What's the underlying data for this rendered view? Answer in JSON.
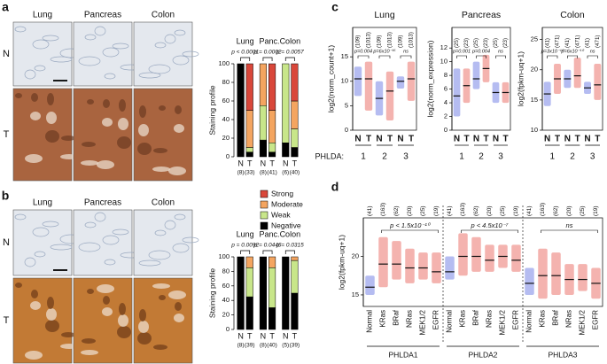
{
  "panel_labels": [
    "a",
    "b",
    "c",
    "d"
  ],
  "histology": [
    {
      "columns": [
        "Lung",
        "Pancreas",
        "Colon"
      ],
      "rows": [
        "N",
        "T"
      ]
    },
    {
      "columns": [
        "Lung",
        "Pancreas",
        "Colon"
      ],
      "rows": [
        "N",
        "T"
      ]
    }
  ],
  "chart_data": [
    {
      "type": "stacked_bar",
      "y_label": "Staining profile",
      "groups": [
        "Lung",
        "Panc.",
        "Colon"
      ],
      "p_values": [
        "p < 0.0001",
        "p = 0.0002",
        "p = 0.0057"
      ],
      "categories": [
        "N",
        "T",
        "N",
        "T",
        "N",
        "T"
      ],
      "counts": [
        "(8)",
        "(33)",
        "(8)",
        "(41)",
        "(6)",
        "(40)"
      ],
      "ylim": [
        0,
        100
      ],
      "yticks": [
        0,
        20,
        40,
        60,
        80,
        100
      ],
      "legend": true,
      "series": [
        {
          "name": "Negative",
          "color": "#000000",
          "values": [
            100,
            5,
            18,
            5,
            15,
            10
          ]
        },
        {
          "name": "Weak",
          "color": "#c8e68a",
          "values": [
            0,
            5,
            37,
            10,
            85,
            20
          ]
        },
        {
          "name": "Moderate",
          "color": "#f4a560",
          "values": [
            0,
            40,
            45,
            35,
            0,
            30
          ]
        },
        {
          "name": "Strong",
          "color": "#d9473a",
          "values": [
            0,
            50,
            0,
            50,
            0,
            40
          ]
        }
      ]
    },
    {
      "type": "stacked_bar",
      "y_label": "Staining profile",
      "groups": [
        "Lung",
        "Panc.",
        "Colon"
      ],
      "p_values": [
        "p = 0.0092",
        "p = 0.0446",
        "p = 0.0315"
      ],
      "categories": [
        "N",
        "T",
        "N",
        "T",
        "N",
        "T"
      ],
      "counts": [
        "(8)",
        "(39)",
        "(8)",
        "(40)",
        "(5)",
        "(39)"
      ],
      "ylim": [
        0,
        100
      ],
      "yticks": [
        0,
        20,
        40,
        60,
        80,
        100
      ],
      "legend": false,
      "series": [
        {
          "name": "Negative",
          "color": "#000000",
          "values": [
            100,
            45,
            100,
            30,
            100,
            50
          ]
        },
        {
          "name": "Weak",
          "color": "#c8e68a",
          "values": [
            0,
            40,
            0,
            55,
            0,
            45
          ]
        },
        {
          "name": "Moderate",
          "color": "#f4a560",
          "values": [
            0,
            15,
            0,
            15,
            0,
            5
          ]
        },
        {
          "name": "Strong",
          "color": "#d9473a",
          "values": [
            0,
            0,
            0,
            0,
            0,
            0
          ]
        }
      ]
    },
    {
      "type": "strip",
      "title": "Lung",
      "y_label": "log2(norm_count+1)",
      "x_label": "PHLDA:",
      "groups": [
        "1",
        "2",
        "3"
      ],
      "categories": [
        "N",
        "T",
        "N",
        "T",
        "N",
        "T"
      ],
      "counts": [
        "(109)",
        "(1013)",
        "(109)",
        "(1013)",
        "(109)",
        "(1013)"
      ],
      "p_values": [
        "p=0.004",
        "p=6x10⁻¹⁵",
        "ns"
      ],
      "colors": [
        "#2b3fd6",
        "#e0241b",
        "#2b3fd6",
        "#e0241b",
        "#2b3fd6",
        "#e0241b"
      ],
      "medians": [
        10.5,
        10.5,
        6.5,
        8,
        10,
        10.5
      ],
      "lows": [
        7,
        4,
        3,
        2,
        8.5,
        6
      ],
      "highs": [
        13,
        14,
        10,
        12,
        11,
        14
      ],
      "ylim": [
        0,
        21
      ],
      "yticks": [
        0,
        5,
        10,
        15
      ]
    },
    {
      "type": "strip",
      "title": "Pancreas",
      "y_label": "log2(norm_expression)",
      "groups": [
        "1",
        "2",
        "3"
      ],
      "categories": [
        "N",
        "T",
        "N",
        "T",
        "N",
        "T"
      ],
      "counts": [
        "(25)",
        "(23)",
        "(25)",
        "(23)",
        "(25)",
        "(23)"
      ],
      "p_values": [
        "p=0.001",
        "p=0.004",
        "ns"
      ],
      "colors": [
        "#2b3fd6",
        "#e0241b",
        "#2b3fd6",
        "#e0241b",
        "#2b3fd6",
        "#e0241b"
      ],
      "medians": [
        5,
        6.5,
        7.5,
        9,
        5.5,
        5.5
      ],
      "lows": [
        2,
        4,
        6,
        7,
        4,
        4
      ],
      "highs": [
        9,
        9,
        10,
        11,
        7,
        7
      ],
      "ylim": [
        0,
        15
      ],
      "yticks": [
        0,
        2,
        4,
        6,
        8,
        10,
        12
      ]
    },
    {
      "type": "strip",
      "title": "Colon",
      "y_label": "log2(fpkm-uq+1)",
      "groups": [
        "1",
        "2",
        "3"
      ],
      "categories": [
        "N",
        "T",
        "N",
        "T",
        "N",
        "T"
      ],
      "counts": [
        "(41)",
        "(471)",
        "(41)",
        "(471)",
        "(41)",
        "(471)"
      ],
      "p_values": [
        "p=3x10⁻¹⁰",
        "p=6x10⁻¹⁰",
        "ns"
      ],
      "colors": [
        "#2b3fd6",
        "#e0241b",
        "#2b3fd6",
        "#e0241b",
        "#2b3fd6",
        "#e0241b"
      ],
      "medians": [
        16,
        18.5,
        18.5,
        19,
        17,
        17.5
      ],
      "lows": [
        14,
        16,
        17,
        17,
        16,
        15
      ],
      "highs": [
        18,
        21,
        20,
        22,
        18,
        21
      ],
      "ylim": [
        10,
        27
      ],
      "yticks": [
        10,
        15,
        20,
        25
      ]
    },
    {
      "type": "strip",
      "y_label": "log2(fpkm-uq+1)",
      "groups": [
        "PHLDA1",
        "PHLDA2",
        "PHLDA3"
      ],
      "rotate_labels": true,
      "categories": [
        "Normal",
        "KRas",
        "BRaf",
        "NRas",
        "MEK1/2",
        "EGFR",
        "Normal",
        "KRas",
        "BRaf",
        "NRas",
        "MEK1/2",
        "EGFR",
        "Normal",
        "KRas",
        "BRaf",
        "NRas",
        "MEK1/2",
        "EGFR"
      ],
      "counts": [
        "(41)",
        "(163)",
        "(62)",
        "(20)",
        "(25)",
        "(19)",
        "(41)",
        "(163)",
        "(62)",
        "(20)",
        "(25)",
        "(19)",
        "(41)",
        "(163)",
        "(62)",
        "(20)",
        "(25)",
        "(19)"
      ],
      "p_values": [
        "p < 1.5x10⁻¹⁰",
        "p < 4.5x10⁻⁷",
        "ns"
      ],
      "colors": [
        "#2b3fd6",
        "#e0241b",
        "#e0241b",
        "#e0241b",
        "#e0241b",
        "#e0241b",
        "#2b3fd6",
        "#e0241b",
        "#e0241b",
        "#e0241b",
        "#e0241b",
        "#e0241b",
        "#2b3fd6",
        "#e0241b",
        "#e0241b",
        "#e0241b",
        "#e0241b",
        "#e0241b"
      ],
      "medians": [
        16,
        19,
        19,
        18.5,
        18.5,
        18,
        18,
        20,
        20,
        19.5,
        20,
        19.5,
        16.5,
        17.5,
        17.5,
        17,
        17,
        16.5
      ],
      "lows": [
        15,
        16,
        17,
        16.5,
        17,
        16.5,
        17,
        17.5,
        18,
        18,
        18.5,
        18,
        15,
        14.5,
        15,
        15,
        15.5,
        14.5
      ],
      "highs": [
        17.5,
        22.5,
        22,
        21,
        20.5,
        20.5,
        20,
        23,
        22.5,
        21.5,
        21.5,
        21.5,
        18.5,
        21,
        20.5,
        19,
        19,
        18.5
      ],
      "ylim": [
        13.5,
        25
      ],
      "yticks": [
        15,
        20
      ]
    }
  ]
}
